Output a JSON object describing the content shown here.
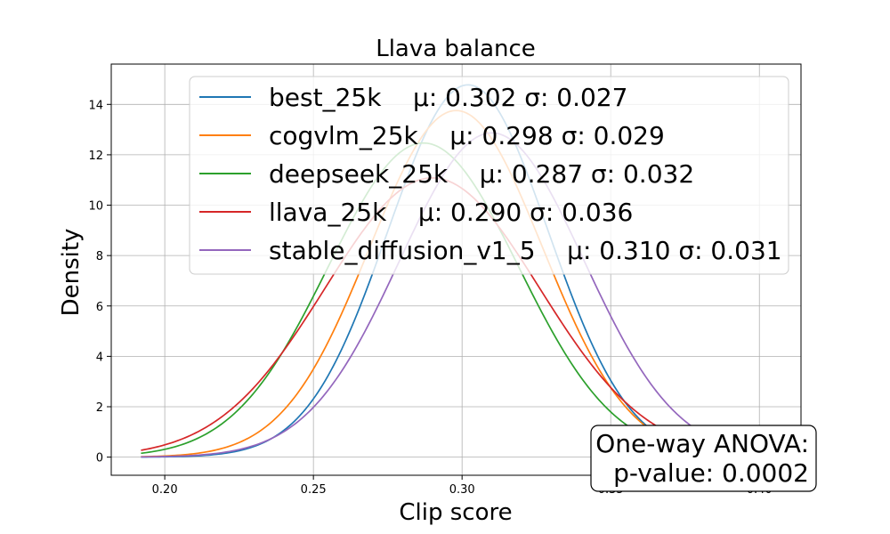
{
  "chart_data": {
    "type": "line",
    "title": "Llava balance",
    "xlabel": "Clip score",
    "ylabel": "Density",
    "xlim": [
      0.182,
      0.414
    ],
    "ylim": [
      -0.72,
      15.6
    ],
    "xticks": [
      0.2,
      0.25,
      0.3,
      0.35,
      0.4
    ],
    "xtick_labels": [
      "0.20",
      "0.25",
      "0.30",
      "0.35",
      "0.40"
    ],
    "yticks": [
      0,
      2,
      4,
      6,
      8,
      10,
      12,
      14
    ],
    "ytick_labels": [
      "0",
      "2",
      "4",
      "6",
      "8",
      "10",
      "12",
      "14"
    ],
    "grid": true,
    "legend_position": "top-right",
    "x_range": [
      0.192,
      0.402
    ],
    "series": [
      {
        "name": "best_25k",
        "legend_stats": "μ: 0.302 σ: 0.027",
        "mu": 0.302,
        "sigma": 0.027,
        "color": "#1f77b4"
      },
      {
        "name": "cogvlm_25k",
        "legend_stats": "μ: 0.298 σ: 0.029",
        "mu": 0.298,
        "sigma": 0.029,
        "color": "#ff7f0e"
      },
      {
        "name": "deepseek_25k",
        "legend_stats": "μ: 0.287 σ: 0.032",
        "mu": 0.287,
        "sigma": 0.032,
        "color": "#2ca02c"
      },
      {
        "name": "llava_25k",
        "legend_stats": "μ: 0.290 σ: 0.036",
        "mu": 0.29,
        "sigma": 0.036,
        "color": "#d62728"
      },
      {
        "name": "stable_diffusion_v1_5",
        "legend_stats": "μ: 0.310 σ: 0.031",
        "mu": 0.31,
        "sigma": 0.031,
        "color": "#9467bd"
      }
    ],
    "annotation": {
      "line1": "One-way ANOVA:",
      "line2": "p-value: 0.0002",
      "position": "bottom-right"
    }
  }
}
